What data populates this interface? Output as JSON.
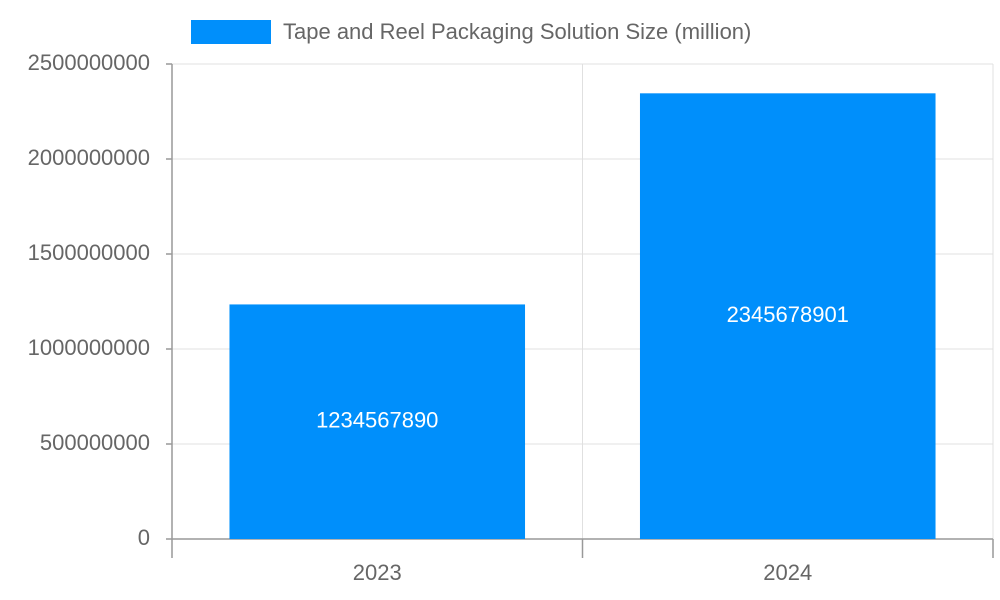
{
  "chart_data": {
    "type": "bar",
    "categories": [
      "2023",
      "2024"
    ],
    "series": [
      {
        "name": "Tape and Reel Packaging Solution Size (million)",
        "color": "#008ffb",
        "values": [
          1234567890,
          2345678901
        ]
      }
    ],
    "ylim": [
      0,
      2500000000
    ],
    "yticks": [
      0,
      500000000,
      1000000000,
      1500000000,
      2000000000,
      2500000000
    ],
    "grid": true
  }
}
